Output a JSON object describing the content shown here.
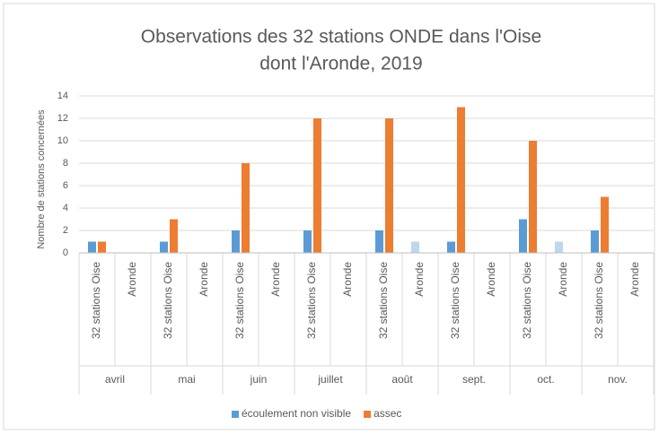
{
  "chart_data": {
    "type": "bar",
    "title": [
      "Observations des 32 stations ONDE dans l'Oise",
      "dont l'Aronde, 2019"
    ],
    "y_label": "Nombre de stations concernées",
    "categories": [
      "32 stations Oise",
      "Aronde",
      "32 stations Oise",
      "Aronde",
      "32 stations Oise",
      "Aronde",
      "32 stations Oise",
      "Aronde",
      "32 stations Oise",
      "Aronde",
      "32 stations Oise",
      "Aronde",
      "32 stations Oise",
      "Aronde",
      "32 stations Oise",
      "Aronde"
    ],
    "groups": [
      "avril",
      "mai",
      "juin",
      "juillet",
      "août",
      "sept.",
      "oct.",
      "nov."
    ],
    "series": [
      {
        "name": "écoulement non visible",
        "color": "#5b9bd5",
        "point_colors": [
          "#5b9bd5",
          "#bdd7ee",
          "#5b9bd5",
          "#bdd7ee",
          "#5b9bd5",
          "#bdd7ee",
          "#5b9bd5",
          "#bdd7ee",
          "#5b9bd5",
          "#bdd7ee",
          "#5b9bd5",
          "#bdd7ee",
          "#5b9bd5",
          "#bdd7ee",
          "#5b9bd5",
          "#bdd7ee"
        ],
        "values": [
          1,
          0,
          1,
          0,
          2,
          0,
          2,
          0,
          2,
          1,
          1,
          0,
          3,
          1,
          2,
          0
        ]
      },
      {
        "name": "assec",
        "color": "#ed7d31",
        "values": [
          1,
          0,
          3,
          0,
          8,
          0,
          12,
          0,
          12,
          0,
          13,
          0,
          10,
          0,
          5,
          0
        ]
      }
    ],
    "ylim": [
      0,
      14
    ],
    "yticks": [
      0,
      2,
      4,
      6,
      8,
      10,
      12,
      14
    ],
    "grid": true,
    "legend": "bottom"
  }
}
